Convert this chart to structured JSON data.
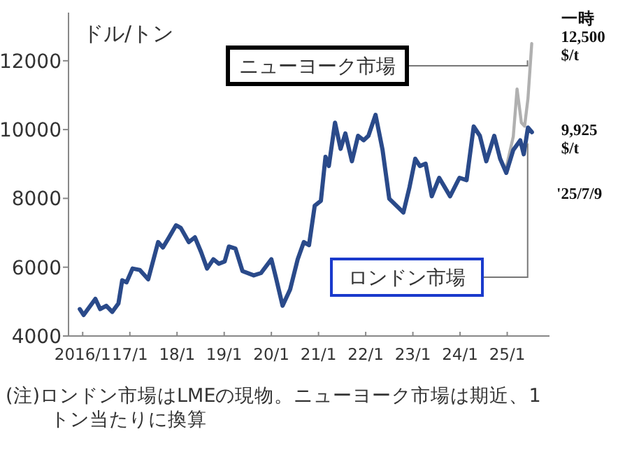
{
  "chart_data": {
    "type": "line",
    "ylabel": "ドル/トン",
    "legend": false,
    "grid": false,
    "marker": "none",
    "line_style": "solid",
    "xlim": [
      "2015-09-13",
      "2025-11-24"
    ],
    "ylim": [
      4000,
      13400
    ],
    "xticks": [
      {
        "value": "2016-01",
        "label": "2016/1"
      },
      {
        "value": "2017-01",
        "label": "17/1"
      },
      {
        "value": "2018-01",
        "label": "18/1"
      },
      {
        "value": "2019-01",
        "label": "19/1"
      },
      {
        "value": "2020-01",
        "label": "20/1"
      },
      {
        "value": "2021-01",
        "label": "21/1"
      },
      {
        "value": "2022-01",
        "label": "22/1"
      },
      {
        "value": "2023-01",
        "label": "23/1"
      },
      {
        "value": "2024-01",
        "label": "24/1"
      },
      {
        "value": "2025-01",
        "label": "25/1"
      }
    ],
    "yticks": [
      4000,
      6000,
      8000,
      10000,
      12000
    ],
    "series": [
      {
        "name": "ニューヨーク市場",
        "color": "#b0b0b0",
        "x": [
          "2024-12-24",
          "2025-02-17",
          "2025-03-16",
          "2025-04-19",
          "2025-05-14",
          "2025-06-09",
          "2025-07-08"
        ],
        "values": [
          8900,
          9800,
          11180,
          10200,
          10100,
          10900,
          12500
        ]
      },
      {
        "name": "ロンドン市場",
        "color": "#2a4a8a",
        "x": [
          "2015-12-09",
          "2016-01-08",
          "2016-04-08",
          "2016-05-14",
          "2016-07-01",
          "2016-08-17",
          "2016-10-04",
          "2016-11-03",
          "2016-12-06",
          "2017-01-22",
          "2017-03-16",
          "2017-05-21",
          "2017-08-07",
          "2017-09-13",
          "2017-10-26",
          "2017-12-24",
          "2018-01-30",
          "2018-04-01",
          "2018-05-18",
          "2018-07-05",
          "2018-08-21",
          "2018-10-08",
          "2018-11-21",
          "2019-01-05",
          "2019-02-07",
          "2019-03-27",
          "2019-05-21",
          "2019-08-17",
          "2019-10-12",
          "2020-01-01",
          "2020-02-07",
          "2020-03-27",
          "2020-05-25",
          "2020-07-22",
          "2020-09-09",
          "2020-10-19",
          "2020-12-02",
          "2021-01-19",
          "2021-02-25",
          "2021-03-20",
          "2021-05-07",
          "2021-06-20",
          "2021-07-26",
          "2021-09-16",
          "2021-11-03",
          "2021-12-16",
          "2022-01-22",
          "2022-03-16",
          "2022-05-10",
          "2022-07-01",
          "2022-09-13",
          "2022-10-19",
          "2022-12-06",
          "2023-01-19",
          "2023-02-25",
          "2023-04-08",
          "2023-05-25",
          "2023-07-22",
          "2023-10-15",
          "2023-12-27",
          "2024-02-21",
          "2024-04-15",
          "2024-06-02",
          "2024-07-22",
          "2024-09-23",
          "2024-11-07",
          "2024-12-24",
          "2025-02-17",
          "2025-04-11",
          "2025-05-07",
          "2025-06-09",
          "2025-07-09"
        ],
        "values": [
          4780,
          4610,
          5080,
          4780,
          4880,
          4700,
          4950,
          5620,
          5560,
          5960,
          5920,
          5650,
          6730,
          6570,
          6840,
          7220,
          7140,
          6730,
          6870,
          6440,
          5960,
          6230,
          6100,
          6170,
          6600,
          6540,
          5890,
          5760,
          5830,
          6230,
          5690,
          4880,
          5350,
          6230,
          6730,
          6640,
          7790,
          7930,
          9210,
          8940,
          10200,
          9440,
          9890,
          9080,
          9820,
          9690,
          9820,
          10430,
          9410,
          7990,
          7720,
          7590,
          8330,
          9150,
          8940,
          9010,
          8060,
          8600,
          8060,
          8600,
          8530,
          10090,
          9820,
          9080,
          9820,
          9150,
          8740,
          9410,
          9690,
          9280,
          10060,
          9925
        ]
      }
    ],
    "annotations": [
      {
        "text": "一時\n12,500\n$/t",
        "x": "2025-07-08",
        "y": 12500
      },
      {
        "text": "9,925\n$/t",
        "x": "2025-07-09",
        "y": 9925
      },
      "'25/7/9",
      "(注)ロンドン市場はLMEの現物。ニューヨーク市場は期近、1トン当たりに換算"
    ]
  }
}
